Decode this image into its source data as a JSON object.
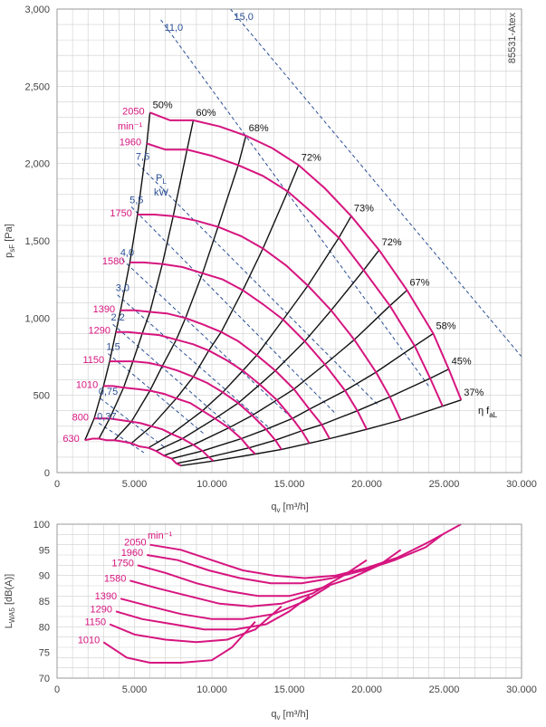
{
  "chart_data": [
    {
      "type": "line",
      "id": "pressure",
      "code": "85531-Atex",
      "xlabel": "q",
      "xlabel_sub": "v",
      "xlabel_unit": "[m³/h]",
      "ylabel": "p",
      "ylabel_sub": "sF",
      "ylabel_unit": "[Pa]",
      "xlim": [
        0,
        30000
      ],
      "ylim": [
        0,
        3000
      ],
      "xticks": [
        0,
        5000,
        10000,
        15000,
        20000,
        25000,
        30000
      ],
      "xtick_labels": [
        "0",
        "5.000",
        "10.000",
        "15.000",
        "20.000",
        "25.000",
        "30.000"
      ],
      "yticks": [
        0,
        500,
        1000,
        1500,
        2000,
        2500,
        3000
      ],
      "ytick_labels": [
        "0",
        "500",
        "1,000",
        "1,500",
        "2,000",
        "2,500",
        "3,000"
      ],
      "grid": true,
      "speed_unit": "min⁻¹",
      "speed_curves": [
        {
          "name": "2050",
          "x": [
            6000,
            7300,
            8800,
            10500,
            12200,
            13900,
            15600,
            17300,
            19000,
            20800,
            22600,
            24300,
            25300,
            26100
          ],
          "y": [
            2330,
            2280,
            2280,
            2240,
            2180,
            2100,
            1990,
            1840,
            1660,
            1440,
            1180,
            900,
            670,
            470
          ]
        },
        {
          "name": "1960",
          "x": [
            5800,
            7000,
            8400,
            10000,
            11700,
            13300,
            14900,
            16500,
            18200,
            19800,
            21500,
            23100,
            24100,
            24900
          ],
          "y": [
            2130,
            2090,
            2090,
            2050,
            1990,
            1920,
            1820,
            1680,
            1520,
            1310,
            1080,
            820,
            610,
            430
          ]
        },
        {
          "name": "1750",
          "x": [
            5200,
            6300,
            7500,
            9000,
            10400,
            11900,
            13300,
            14800,
            16200,
            17700,
            19200,
            20600,
            21500,
            22200
          ],
          "y": [
            1670,
            1670,
            1660,
            1630,
            1590,
            1530,
            1450,
            1340,
            1210,
            1050,
            860,
            650,
            490,
            340
          ]
        },
        {
          "name": "1580",
          "x": [
            4700,
            5600,
            6800,
            8100,
            9400,
            10700,
            12000,
            13300,
            14600,
            16000,
            17300,
            18600,
            19400,
            20000
          ],
          "y": [
            1360,
            1360,
            1350,
            1330,
            1290,
            1250,
            1180,
            1090,
            990,
            850,
            700,
            530,
            400,
            280
          ]
        },
        {
          "name": "1390",
          "x": [
            4100,
            5000,
            6000,
            7100,
            8300,
            9400,
            10600,
            11700,
            12900,
            14100,
            15300,
            16300,
            17100,
            17600
          ],
          "y": [
            1050,
            1050,
            1040,
            1030,
            1000,
            960,
            910,
            850,
            760,
            660,
            540,
            410,
            310,
            220
          ]
        },
        {
          "name": "1290",
          "x": [
            3800,
            4600,
            5500,
            6600,
            7700,
            8800,
            9800,
            10900,
            12000,
            13100,
            14200,
            15200,
            15800,
            16300
          ],
          "y": [
            910,
            910,
            900,
            890,
            860,
            830,
            790,
            730,
            660,
            570,
            470,
            350,
            270,
            190
          ]
        },
        {
          "name": "1150",
          "x": [
            3400,
            4100,
            4900,
            5900,
            6800,
            7800,
            8800,
            9700,
            10700,
            11700,
            12600,
            13500,
            14100,
            14500
          ],
          "y": [
            720,
            720,
            720,
            710,
            690,
            660,
            620,
            580,
            520,
            450,
            370,
            280,
            210,
            150
          ]
        },
        {
          "name": "1010",
          "x": [
            3000,
            3600,
            4300,
            5200,
            6000,
            6900,
            7700,
            8600,
            9400,
            10200,
            11100,
            11900,
            12400,
            12800
          ],
          "y": [
            560,
            560,
            550,
            540,
            530,
            510,
            480,
            450,
            400,
            350,
            290,
            220,
            160,
            120
          ]
        },
        {
          "name": "800",
          "x": [
            2400,
            2900,
            3400,
            4100,
            4800,
            5400,
            6100,
            6800,
            7400,
            8100,
            8800,
            9400,
            9800,
            10100
          ],
          "y": [
            350,
            350,
            350,
            340,
            330,
            320,
            300,
            280,
            250,
            220,
            180,
            140,
            100,
            75
          ]
        },
        {
          "name": "630",
          "x": [
            1800,
            2300,
            2700,
            3200,
            3700,
            4300,
            4800,
            5300,
            5900,
            6400,
            6900,
            7400,
            7700,
            8000
          ],
          "y": [
            210,
            220,
            220,
            210,
            210,
            200,
            190,
            170,
            160,
            140,
            110,
            90,
            60,
            45
          ]
        }
      ],
      "efficiency_curves": [
        {
          "name": "50%",
          "x": [
            1800,
            2400,
            3000,
            3400,
            3800,
            4100,
            4700,
            5200,
            5800,
            6000
          ],
          "y": [
            210,
            350,
            560,
            720,
            910,
            1050,
            1360,
            1670,
            2130,
            2330
          ]
        },
        {
          "name": "60%",
          "x": [
            2700,
            3400,
            4300,
            4900,
            5500,
            6000,
            6800,
            7500,
            8400,
            8800
          ],
          "y": [
            220,
            350,
            550,
            720,
            900,
            1040,
            1350,
            1660,
            2090,
            2280
          ]
        },
        {
          "name": "68%",
          "x": [
            3700,
            4800,
            6000,
            6800,
            7700,
            8300,
            9400,
            10400,
            11700,
            12200
          ],
          "y": [
            210,
            330,
            530,
            690,
            860,
            1000,
            1290,
            1590,
            1990,
            2180
          ]
        },
        {
          "name": "72%",
          "x": [
            4800,
            6100,
            7700,
            8800,
            9800,
            10600,
            12000,
            13300,
            14900,
            15600
          ],
          "y": [
            190,
            300,
            480,
            620,
            790,
            910,
            1180,
            1450,
            1820,
            1990
          ]
        },
        {
          "name": "73%",
          "x": [
            5900,
            7400,
            9400,
            10700,
            12000,
            12900,
            14600,
            16200,
            18200,
            19000
          ],
          "y": [
            160,
            250,
            400,
            520,
            660,
            760,
            990,
            1210,
            1520,
            1660
          ]
        },
        {
          "name": "72%",
          "x": [
            6400,
            8100,
            10200,
            11700,
            13100,
            14100,
            16000,
            17700,
            19800,
            20800
          ],
          "y": [
            140,
            220,
            350,
            450,
            570,
            660,
            850,
            1050,
            1310,
            1440
          ]
        },
        {
          "name": "67%",
          "x": [
            6900,
            8800,
            11100,
            12600,
            14200,
            15300,
            17300,
            19200,
            21500,
            22600
          ],
          "y": [
            110,
            180,
            290,
            370,
            470,
            540,
            700,
            860,
            1080,
            1180
          ]
        },
        {
          "name": "58%",
          "x": [
            7400,
            9400,
            11900,
            13500,
            15200,
            16300,
            18600,
            20600,
            23100,
            24300
          ],
          "y": [
            90,
            140,
            220,
            280,
            350,
            410,
            530,
            650,
            820,
            900
          ]
        },
        {
          "name": "45%",
          "x": [
            7700,
            9800,
            12400,
            14100,
            15800,
            17100,
            19400,
            21500,
            24100,
            25300
          ],
          "y": [
            60,
            100,
            160,
            210,
            270,
            310,
            400,
            490,
            610,
            670
          ]
        },
        {
          "name": "37%",
          "x": [
            8000,
            10100,
            12800,
            14500,
            16300,
            17600,
            20000,
            22200,
            24900,
            26100
          ],
          "y": [
            45,
            75,
            120,
            150,
            190,
            220,
            280,
            340,
            430,
            470
          ]
        }
      ],
      "power_lines": [
        {
          "name": "15,0",
          "x": [
            11200,
            30000
          ],
          "y": [
            3000,
            750
          ]
        },
        {
          "name": "11,0",
          "x": [
            6700,
            24000
          ],
          "y": [
            2930,
            560
          ]
        },
        {
          "name": "7,5",
          "x": [
            5200,
            20800
          ],
          "y": [
            2000,
            430
          ]
        },
        {
          "name": "5,5",
          "x": [
            4800,
            18000
          ],
          "y": [
            1720,
            380
          ]
        },
        {
          "name": "4,0",
          "x": [
            4200,
            15500
          ],
          "y": [
            1380,
            320
          ]
        },
        {
          "name": "3,0",
          "x": [
            3900,
            13800
          ],
          "y": [
            1150,
            280
          ]
        },
        {
          "name": "2,2",
          "x": [
            3600,
            11500
          ],
          "y": [
            960,
            270
          ]
        },
        {
          "name": "1,5",
          "x": [
            3300,
            9500
          ],
          "y": [
            770,
            250
          ]
        },
        {
          "name": "0,75",
          "x": [
            2800,
            7000
          ],
          "y": [
            480,
            160
          ]
        },
        {
          "name": "0,37",
          "x": [
            2700,
            5600
          ],
          "y": [
            320,
            130
          ]
        }
      ],
      "power_label": "P",
      "power_label_sub": "L",
      "power_unit": "kW",
      "eff_symbol": "η f",
      "eff_symbol_sub": "aL",
      "colors": {
        "speed": "#d6157f",
        "efficiency": "#111111",
        "power": "#2b4f96",
        "grid": "#cfcfcf"
      }
    },
    {
      "type": "line",
      "id": "sound",
      "xlabel": "q",
      "xlabel_sub": "v",
      "xlabel_unit": "[m³/h]",
      "ylabel": "L",
      "ylabel_sub": "WA5",
      "ylabel_unit": "[dB(A)]",
      "xlim": [
        0,
        30000
      ],
      "ylim": [
        70,
        100
      ],
      "xticks": [
        0,
        5000,
        10000,
        15000,
        20000,
        25000,
        30000
      ],
      "xtick_labels": [
        "0",
        "5.000",
        "10.000",
        "15.000",
        "20.000",
        "25.000",
        "30.000"
      ],
      "yticks": [
        70,
        75,
        80,
        85,
        90,
        95,
        100
      ],
      "ytick_labels": [
        "70",
        "75",
        "80",
        "85",
        "90",
        "95",
        "100"
      ],
      "grid": true,
      "speed_unit": "min⁻¹",
      "series": [
        {
          "name": "2050",
          "x": [
            6000,
            8000,
            10000,
            12000,
            14000,
            16000,
            18000,
            20000,
            22000,
            24000,
            26100
          ],
          "y": [
            96,
            95,
            93,
            91,
            90,
            89.5,
            90,
            91.5,
            93.5,
            96.5,
            100
          ]
        },
        {
          "name": "1960",
          "x": [
            5800,
            7800,
            9800,
            11800,
            13800,
            15800,
            17800,
            19800,
            21800,
            23800,
            24900
          ],
          "y": [
            94,
            93,
            91,
            89.5,
            88.5,
            88.5,
            89.5,
            91,
            93,
            95.5,
            98
          ]
        },
        {
          "name": "1750",
          "x": [
            5200,
            7000,
            9000,
            11000,
            13000,
            15000,
            17000,
            19000,
            20800,
            22200
          ],
          "y": [
            92,
            90.5,
            88.5,
            87,
            86,
            86,
            87.5,
            89.5,
            92,
            95
          ]
        },
        {
          "name": "1580",
          "x": [
            4700,
            6500,
            8500,
            10500,
            12500,
            14500,
            16500,
            18500,
            20000
          ],
          "y": [
            89,
            87.5,
            86,
            84.5,
            84,
            84.5,
            86.5,
            90,
            93
          ]
        },
        {
          "name": "1390",
          "x": [
            4100,
            6000,
            8000,
            10000,
            12000,
            14000,
            16000,
            17600
          ],
          "y": [
            85.5,
            84,
            82.5,
            81.5,
            81.5,
            82.5,
            85,
            88
          ]
        },
        {
          "name": "1290",
          "x": [
            3800,
            5500,
            7500,
            9500,
            11500,
            13500,
            15000,
            16300
          ],
          "y": [
            83,
            81.5,
            80.5,
            79.5,
            79.5,
            80.5,
            83,
            86
          ]
        },
        {
          "name": "1150",
          "x": [
            3400,
            5000,
            7000,
            9000,
            11000,
            12800,
            14500
          ],
          "y": [
            80.5,
            78.5,
            77.5,
            77,
            77.5,
            79.5,
            84
          ]
        },
        {
          "name": "1010",
          "x": [
            3000,
            4500,
            6000,
            8000,
            10000,
            11300,
            12800
          ],
          "y": [
            77,
            74,
            73,
            73,
            73.5,
            76,
            81
          ]
        }
      ],
      "colors": {
        "speed": "#d6157f",
        "grid": "#cfcfcf"
      }
    }
  ]
}
